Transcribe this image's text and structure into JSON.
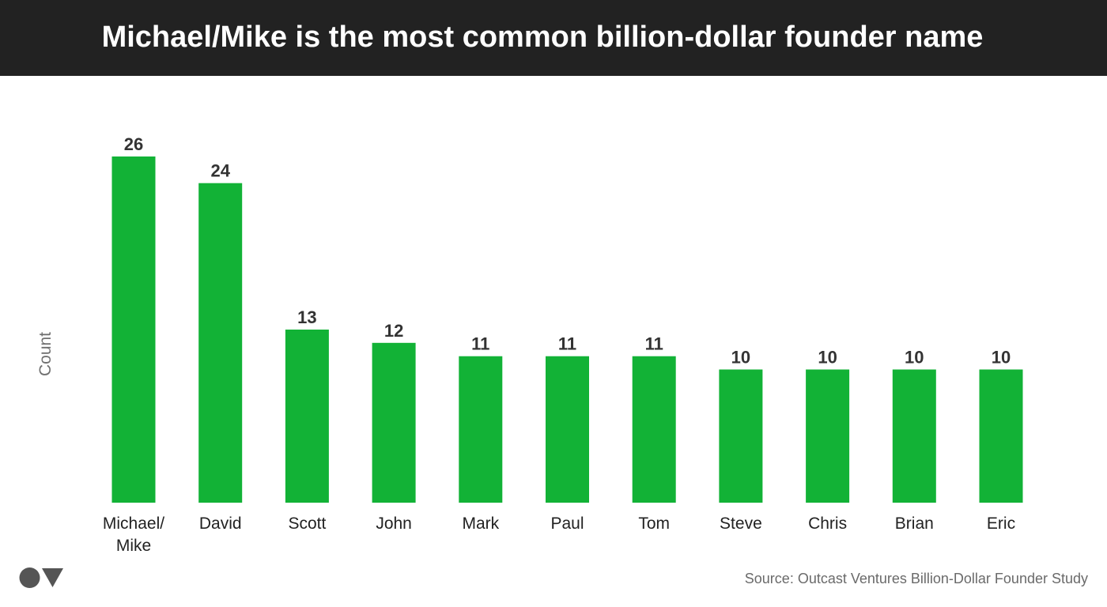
{
  "header": {
    "title": "Michael/Mike is the most common billion-dollar founder name"
  },
  "chart_data": {
    "type": "bar",
    "title": "Michael/Mike is the most common billion-dollar founder name",
    "xlabel": "",
    "ylabel": "Count",
    "categories": [
      [
        "Michael/",
        "Mike"
      ],
      [
        "David"
      ],
      [
        "Scott"
      ],
      [
        "John"
      ],
      [
        "Mark"
      ],
      [
        "Paul"
      ],
      [
        "Tom"
      ],
      [
        "Steve"
      ],
      [
        "Chris"
      ],
      [
        "Brian"
      ],
      [
        "Eric"
      ]
    ],
    "values": [
      26,
      24,
      13,
      12,
      11,
      11,
      11,
      10,
      10,
      10,
      10
    ],
    "ylim": [
      0,
      26
    ],
    "grid": false,
    "legend": "none",
    "bar_color": "#12b236"
  },
  "footer": {
    "source": "Source: Outcast Ventures Billion-Dollar Founder Study"
  },
  "logo": {
    "icon": "circle-triangle-logo"
  }
}
